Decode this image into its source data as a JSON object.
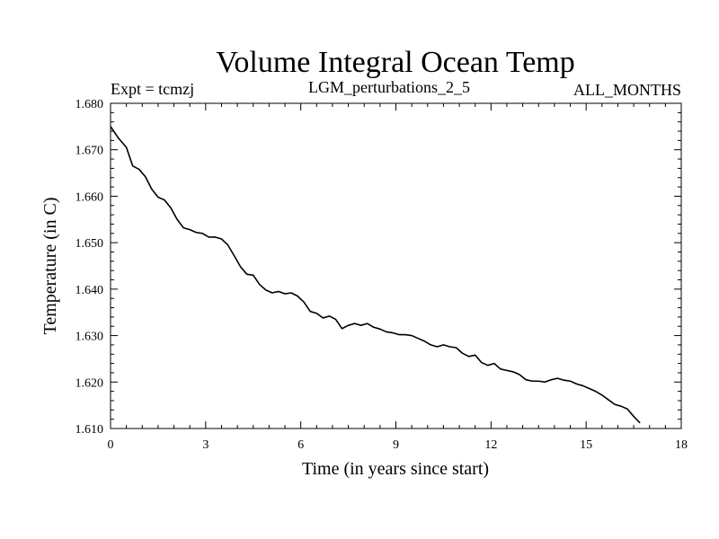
{
  "chart_data": {
    "type": "line",
    "title": "Volume Integral Ocean Temp",
    "subtitle_left": "Expt = tcmzj",
    "subtitle_center": "LGM_perturbations_2_5",
    "subtitle_right": "ALL_MONTHS",
    "xlabel": "Time (in years since start)",
    "ylabel": "Temperature (in C)",
    "xlim": [
      0,
      18
    ],
    "ylim": [
      1.61,
      1.68
    ],
    "x_ticks": [
      0,
      3,
      6,
      9,
      12,
      15,
      18
    ],
    "x_tick_labels": [
      "0",
      "3",
      "6",
      "9",
      "12",
      "15",
      "18"
    ],
    "y_ticks": [
      1.61,
      1.62,
      1.63,
      1.64,
      1.65,
      1.66,
      1.67,
      1.68
    ],
    "y_tick_labels": [
      "1.610",
      "1.620",
      "1.630",
      "1.640",
      "1.650",
      "1.660",
      "1.670",
      "1.680"
    ],
    "grid": false,
    "series": [
      {
        "name": "Volume Integral Ocean Temp",
        "x": [
          0.0,
          0.25,
          0.5,
          0.7,
          0.9,
          1.1,
          1.3,
          1.5,
          1.7,
          1.9,
          2.1,
          2.3,
          2.5,
          2.7,
          2.9,
          3.1,
          3.3,
          3.5,
          3.7,
          3.9,
          4.1,
          4.3,
          4.5,
          4.7,
          4.9,
          5.1,
          5.3,
          5.5,
          5.7,
          5.9,
          6.1,
          6.3,
          6.5,
          6.7,
          6.9,
          7.1,
          7.3,
          7.5,
          7.7,
          7.9,
          8.1,
          8.3,
          8.5,
          8.7,
          8.9,
          9.1,
          9.3,
          9.5,
          9.7,
          9.9,
          10.1,
          10.3,
          10.5,
          10.7,
          10.9,
          11.1,
          11.3,
          11.5,
          11.7,
          11.9,
          12.1,
          12.3,
          12.5,
          12.7,
          12.9,
          13.1,
          13.3,
          13.5,
          13.7,
          13.9,
          14.1,
          14.3,
          14.5,
          14.7,
          14.9,
          15.1,
          15.3,
          15.5,
          15.7,
          15.9,
          16.1,
          16.3,
          16.5,
          16.7
        ],
        "values": [
          1.675,
          1.6725,
          1.6705,
          1.6665,
          1.6658,
          1.6642,
          1.6615,
          1.6598,
          1.6592,
          1.6575,
          1.655,
          1.6532,
          1.6528,
          1.6522,
          1.652,
          1.6512,
          1.6512,
          1.6508,
          1.6495,
          1.6472,
          1.6448,
          1.6432,
          1.643,
          1.641,
          1.6398,
          1.6392,
          1.6395,
          1.639,
          1.6392,
          1.6385,
          1.6372,
          1.6352,
          1.6348,
          1.6338,
          1.6342,
          1.6335,
          1.6315,
          1.6322,
          1.6326,
          1.6322,
          1.6326,
          1.6318,
          1.6314,
          1.6308,
          1.6306,
          1.6302,
          1.6302,
          1.63,
          1.6294,
          1.6288,
          1.628,
          1.6276,
          1.628,
          1.6276,
          1.6274,
          1.6262,
          1.6255,
          1.6258,
          1.6242,
          1.6236,
          1.624,
          1.6228,
          1.6225,
          1.6222,
          1.6216,
          1.6205,
          1.6202,
          1.6202,
          1.62,
          1.6205,
          1.6208,
          1.6204,
          1.6202,
          1.6196,
          1.6192,
          1.6186,
          1.618,
          1.6172,
          1.6162,
          1.6152,
          1.6148,
          1.6142,
          1.6126,
          1.6112
        ]
      }
    ]
  }
}
